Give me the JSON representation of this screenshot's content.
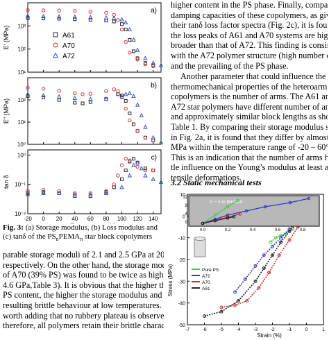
{
  "right_column": {
    "paragraph1": [
      "higher content in the PS phase. Finally, comparing the",
      "damping capacities of these copolymers, as given by",
      "their tanδ loss factor spectra (Fig. 2c), it is found that",
      "the loss peaks of A61 and A70 systems are higher and",
      "broader than that of A72. This finding is consistent",
      "with the A72 polymer structure (high number of arms)",
      "and the prevailing of the PS phase."
    ],
    "paragraph2": [
      "Another parameter that could influence the",
      "thermomechanical properties of the heteroarm star",
      "copolymers is the number of arms. The A61 and",
      "A72 star polymers have different number of arms",
      "and approximately similar block lengths as shown in",
      "Table 1. By comparing their storage modulus spectra",
      "in Fig. 2a, it is found that they differ by almost 500",
      "MPa within the temperature range of -20 – 60°C.",
      "This is an indication that the number of arms has lit-",
      "tle influence on the Young’s modulus at least at low",
      "tensile deformations."
    ],
    "section_heading": "3.2 Static mechanical tests"
  },
  "left_column": {
    "caption_label": "Fig. 3:",
    "caption_text": "(a) Storage modulus, (b) Loss modulus and (c) tanδ of the PS",
    "caption_text2": "PEMA",
    "caption_sub_n": "n",
    "caption_sub_n2": "n",
    "caption_text3": " star block copolymers",
    "paragraph": [
      "parable storage moduli of 2.1 and 2.5 GPa at 20°C,",
      "respectively. On the other hand, the storage modulus",
      "of A70 (39% PS) was found to be twice as high (",
      "4.6 GPa,Table 3). It is obvious that the higher the",
      "PS content, the higher the storage modulus and the",
      "resulting brittle behaviour at low temperatures. It is",
      "worth adding that no rubbery plateau is observed and,",
      "therefore, all polymers retain their brittle character"
    ]
  },
  "chart_data": [
    {
      "type": "scatter",
      "panel": "a)",
      "ylabel": "E' (MPa)",
      "yscale": "log",
      "xlim": [
        -20,
        150
      ],
      "ylim": [
        10,
        10000
      ],
      "yticks": [
        "10¹",
        "10²",
        "10³"
      ],
      "legend": [
        "A61",
        "A70",
        "A72"
      ],
      "series": [
        {
          "name": "A61",
          "marker": "square",
          "x": [
            -20,
            0,
            20,
            40,
            60,
            80,
            90,
            100,
            105,
            110,
            115,
            120,
            130,
            140
          ],
          "y": [
            2200,
            2100,
            2050,
            1950,
            1850,
            1700,
            1550,
            1200,
            700,
            250,
            80,
            40,
            25,
            20
          ]
        },
        {
          "name": "A70",
          "marker": "circle",
          "x": [
            -20,
            0,
            20,
            40,
            60,
            80,
            90,
            95,
            100,
            105,
            110,
            120,
            130,
            140
          ],
          "y": [
            4800,
            4700,
            4600,
            4400,
            4100,
            3700,
            3000,
            1800,
            700,
            200,
            70,
            35,
            22,
            18
          ]
        },
        {
          "name": "A72",
          "marker": "triangle",
          "x": [
            -20,
            0,
            20,
            40,
            60,
            80,
            90,
            100,
            105,
            110,
            115,
            120,
            130,
            140,
            150
          ],
          "y": [
            2700,
            2600,
            2500,
            2450,
            2350,
            2250,
            2150,
            1900,
            1400,
            700,
            250,
            90,
            40,
            25,
            20
          ]
        }
      ]
    },
    {
      "type": "scatter",
      "panel": "b)",
      "ylabel": "E\" (MPa)",
      "yscale": "log",
      "xlim": [
        -20,
        150
      ],
      "ylim": [
        1,
        1000
      ],
      "yticks": [
        "10⁰",
        "10¹",
        "10²"
      ],
      "series": [
        {
          "name": "A61",
          "x": [
            -20,
            0,
            20,
            40,
            50,
            60,
            80,
            95,
            100,
            105,
            110,
            115,
            120,
            130,
            140
          ],
          "y": [
            150,
            130,
            100,
            75,
            70,
            80,
            110,
            180,
            160,
            90,
            25,
            8,
            4,
            2,
            1.5
          ]
        },
        {
          "name": "A70",
          "x": [
            -20,
            0,
            20,
            40,
            50,
            60,
            80,
            90,
            95,
            100,
            105,
            110,
            120,
            130,
            140
          ],
          "y": [
            350,
            320,
            260,
            200,
            180,
            190,
            250,
            300,
            250,
            130,
            40,
            12,
            4,
            2,
            1.5
          ]
        },
        {
          "name": "A72",
          "x": [
            -20,
            0,
            20,
            40,
            60,
            80,
            100,
            105,
            110,
            115,
            120,
            125,
            130,
            140,
            150
          ],
          "y": [
            180,
            160,
            140,
            120,
            110,
            110,
            140,
            180,
            200,
            150,
            60,
            20,
            6,
            2,
            1.2
          ]
        }
      ]
    },
    {
      "type": "scatter",
      "panel": "c)",
      "ylabel": "tan δ",
      "xlabel": "Temperature (°C)",
      "yscale": "log",
      "xlim": [
        -20,
        150
      ],
      "ylim": [
        0.01,
        1.5
      ],
      "yticks": [
        "10⁻²",
        "10⁻¹",
        "10⁰"
      ],
      "xticks": [
        "-20",
        "0",
        "20",
        "40",
        "60",
        "80",
        "100",
        "120",
        "140"
      ],
      "series": [
        {
          "name": "A61",
          "x": [
            -20,
            0,
            20,
            40,
            60,
            80,
            90,
            100,
            105,
            110,
            115,
            120,
            130,
            140
          ],
          "y": [
            0.05,
            0.055,
            0.05,
            0.04,
            0.04,
            0.055,
            0.08,
            0.15,
            0.3,
            0.6,
            0.75,
            0.55,
            0.35,
            0.3
          ]
        },
        {
          "name": "A70",
          "x": [
            -20,
            0,
            20,
            40,
            60,
            80,
            90,
            95,
            100,
            105,
            110,
            120,
            130,
            140
          ],
          "y": [
            0.06,
            0.065,
            0.06,
            0.05,
            0.05,
            0.06,
            0.1,
            0.2,
            0.45,
            0.75,
            0.65,
            0.4,
            0.3,
            0.3
          ]
        },
        {
          "name": "A72",
          "x": [
            -20,
            0,
            20,
            40,
            60,
            80,
            100,
            110,
            115,
            120,
            125,
            130,
            140,
            150
          ],
          "y": [
            0.045,
            0.05,
            0.05,
            0.045,
            0.045,
            0.05,
            0.08,
            0.2,
            0.45,
            0.55,
            0.35,
            0.2,
            0.15,
            0.12
          ]
        }
      ]
    },
    {
      "type": "line",
      "ylabel": "Stress (MPa)",
      "xlabel": "Strain (%)",
      "xlim": [
        -7,
        1
      ],
      "ylim": [
        -50,
        10
      ],
      "xticks": [
        "-7",
        "-6",
        "-5",
        "-4",
        "-3",
        "-2",
        "-1",
        "0",
        "1"
      ],
      "yticks": [
        "-50",
        "-40",
        "-30",
        "-20",
        "-10",
        "0",
        "10"
      ],
      "legend": [
        "Pure PS",
        "A72",
        "A70",
        "A61"
      ],
      "inset": {
        "label": "σ − ε in tension",
        "xticks": [
          "0.0",
          "0.2",
          "0.4",
          "0.6",
          "0.8"
        ],
        "yticks": [
          "0",
          "4",
          "8",
          "12"
        ]
      },
      "series": [
        {
          "name": "Pure PS",
          "color": "#44cc44",
          "x": [
            -2.1,
            -1.8,
            -1.5,
            -1.2,
            -1.0,
            -0.8
          ],
          "y": [
            -12,
            -10,
            -9,
            -8,
            -7,
            -6
          ]
        },
        {
          "name": "A72",
          "color": "#3333cc",
          "x": [
            -4.2,
            -3.6,
            -3.0,
            -2.5,
            -2.0,
            -1.5,
            -1.0,
            -0.6,
            -0.3
          ],
          "y": [
            -35,
            -29,
            -23,
            -18,
            -14,
            -10,
            -6,
            -3,
            -1
          ]
        },
        {
          "name": "A70",
          "color": "#cc3333",
          "x": [
            -5.0,
            -4.2,
            -3.5,
            -2.8,
            -2.2,
            -1.6,
            -1.0,
            -0.5,
            0
          ],
          "y": [
            -42,
            -41,
            -39,
            -33,
            -26,
            -18,
            -11,
            -5,
            0
          ]
        },
        {
          "name": "A61",
          "color": "#222222",
          "x": [
            -6.0,
            -5.0,
            -4.0,
            -3.0,
            -2.5,
            -2.0,
            -1.5,
            -1.0,
            -0.5,
            0,
            0.5
          ],
          "y": [
            -46,
            -44,
            -39,
            -30,
            -24,
            -18,
            -12,
            -7,
            -3,
            0,
            3
          ]
        }
      ]
    }
  ]
}
